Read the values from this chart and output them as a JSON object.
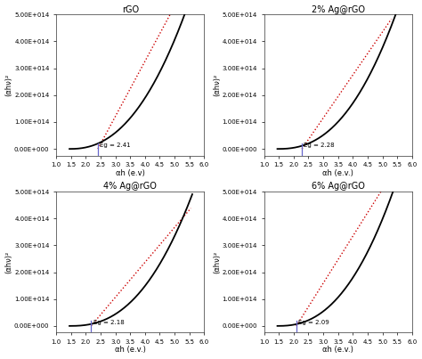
{
  "panels": [
    {
      "title": "rGO",
      "Eg": 2.41,
      "Eg_label": "Eg = 2.41",
      "xlabel": "αh (e.v)",
      "ylabel": "(αhν)²",
      "curve_x0": 1.45,
      "curve_scale": 22000000000000.0,
      "curve_power": 2.3,
      "tang_slope": 205000000000000.0,
      "tang_x_start": 2.41,
      "tang_x_end": 5.55
    },
    {
      "title": "2% Ag@rGO",
      "Eg": 2.28,
      "Eg_label": "Eg = 2.28",
      "xlabel": "αh (e.v.)",
      "ylabel": "(αhν)²",
      "curve_x0": 1.45,
      "curve_scale": 18000000000000.0,
      "curve_power": 2.4,
      "tang_slope": 160000000000000.0,
      "tang_x_start": 2.28,
      "tang_x_end": 5.3
    },
    {
      "title": "4% Ag@rGO",
      "Eg": 2.18,
      "Eg_label": "Eg = 2.18",
      "xlabel": "αh (e.v.)",
      "ylabel": "(αhν)²",
      "curve_x0": 1.45,
      "curve_scale": 15000000000000.0,
      "curve_power": 2.45,
      "tang_slope": 130000000000000.0,
      "tang_x_start": 2.18,
      "tang_x_end": 5.55
    },
    {
      "title": "6% Ag@rGO",
      "Eg": 2.09,
      "Eg_label": "Eg = 2.09",
      "xlabel": "αh (e.v.)",
      "ylabel": "(αhν)²",
      "curve_x0": 1.45,
      "curve_scale": 19000000000000.0,
      "curve_power": 2.4,
      "tang_slope": 175000000000000.0,
      "tang_x_start": 2.09,
      "tang_x_end": 5.35
    }
  ],
  "xlim": [
    1.0,
    6.0
  ],
  "ylim": [
    -25000000000000.0,
    500000000000000.0
  ],
  "yticks": [
    0,
    100000000000000.0,
    200000000000000.0,
    300000000000000.0,
    400000000000000.0,
    500000000000000.0
  ],
  "ytick_labels": [
    "0.00E+000",
    "1.00E+014",
    "2.00E+014",
    "3.00E+014",
    "4.00E+014",
    "5.00E+014"
  ],
  "xticks": [
    1.0,
    1.5,
    2.0,
    2.5,
    3.0,
    3.5,
    4.0,
    4.5,
    5.0,
    5.5,
    6.0
  ],
  "xtick_labels": [
    "1.0",
    "1.5",
    "2.0",
    "2.5",
    "3.0",
    "3.5",
    "4.0",
    "4.5",
    "5.0",
    "5.5",
    "6.0"
  ],
  "curve_color": "#000000",
  "tangent_color": "#cc0000",
  "vline_color": "#6666cc",
  "background_color": "#ffffff",
  "figure_bg": "#ffffff"
}
